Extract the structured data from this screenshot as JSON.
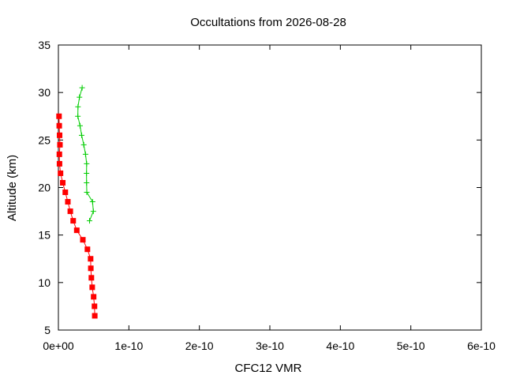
{
  "chart_data": {
    "type": "line",
    "title": "Occultations from 2026-08-28",
    "xlabel": "CFC12 VMR",
    "ylabel": "Altitude (km)",
    "xlim": [
      0,
      6e-10
    ],
    "ylim": [
      5,
      35
    ],
    "x_ticks": [
      "0e+00",
      "1e-10",
      "2e-10",
      "3e-10",
      "4e-10",
      "5e-10",
      "6e-10"
    ],
    "y_ticks": [
      "5",
      "10",
      "15",
      "20",
      "25",
      "30",
      "35"
    ],
    "grid": false,
    "legend": "none",
    "series": [
      {
        "color": "#ff0000",
        "marker": "square",
        "points": [
          {
            "x": 9e-13,
            "y": 27.5
          },
          {
            "x": 1.2e-12,
            "y": 26.5
          },
          {
            "x": 1.7e-12,
            "y": 25.5
          },
          {
            "x": 2.2e-12,
            "y": 24.5
          },
          {
            "x": 1.4e-12,
            "y": 23.5
          },
          {
            "x": 1.6e-12,
            "y": 22.5
          },
          {
            "x": 3e-12,
            "y": 21.5
          },
          {
            "x": 6.2e-12,
            "y": 20.5
          },
          {
            "x": 9.8e-12,
            "y": 19.5
          },
          {
            "x": 1.34e-11,
            "y": 18.5
          },
          {
            "x": 1.69e-11,
            "y": 17.5
          },
          {
            "x": 2.1e-11,
            "y": 16.5
          },
          {
            "x": 2.61e-11,
            "y": 15.5
          },
          {
            "x": 3.47e-11,
            "y": 14.5
          },
          {
            "x": 4.12e-11,
            "y": 13.5
          },
          {
            "x": 4.57e-11,
            "y": 12.5
          },
          {
            "x": 4.6e-11,
            "y": 11.5
          },
          {
            "x": 4.68e-11,
            "y": 10.5
          },
          {
            "x": 4.8e-11,
            "y": 9.5
          },
          {
            "x": 5e-11,
            "y": 8.5
          },
          {
            "x": 5.12e-11,
            "y": 7.5
          },
          {
            "x": 5.16e-11,
            "y": 6.5
          }
        ]
      },
      {
        "color": "#00cc00",
        "marker": "plus",
        "points": [
          {
            "x": 3.37e-11,
            "y": 30.5
          },
          {
            "x": 2.99e-11,
            "y": 29.5
          },
          {
            "x": 2.78e-11,
            "y": 28.5
          },
          {
            "x": 2.76e-11,
            "y": 27.5
          },
          {
            "x": 3.07e-11,
            "y": 26.5
          },
          {
            "x": 3.3e-11,
            "y": 25.5
          },
          {
            "x": 3.6e-11,
            "y": 24.5
          },
          {
            "x": 3.85e-11,
            "y": 23.5
          },
          {
            "x": 4.01e-11,
            "y": 22.5
          },
          {
            "x": 3.99e-11,
            "y": 21.5
          },
          {
            "x": 4e-11,
            "y": 20.5
          },
          {
            "x": 4.03e-11,
            "y": 19.5
          },
          {
            "x": 4.85e-11,
            "y": 18.5
          },
          {
            "x": 4.96e-11,
            "y": 17.5
          },
          {
            "x": 4.42e-11,
            "y": 16.5
          }
        ]
      }
    ]
  }
}
